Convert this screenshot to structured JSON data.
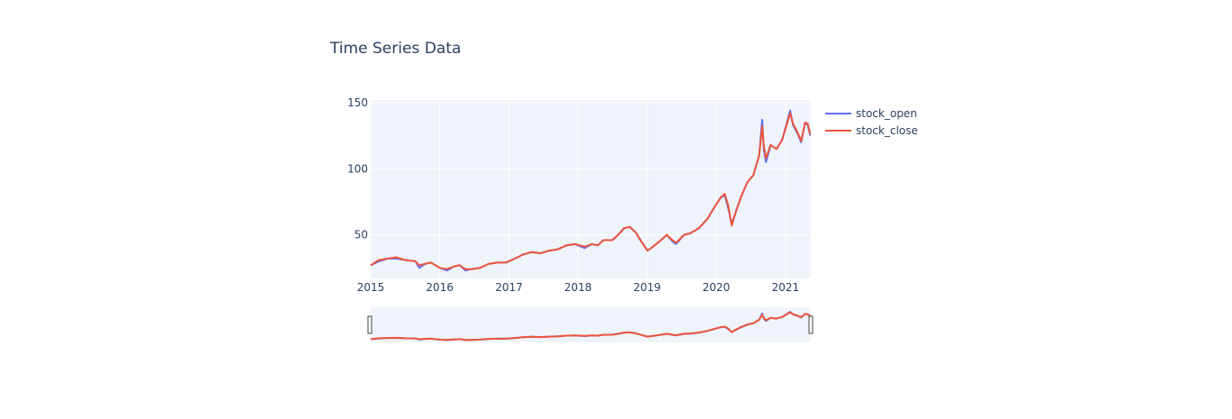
{
  "chart_data": {
    "type": "line",
    "title": "Time Series Data",
    "xlabel": "",
    "ylabel": "",
    "x_ticks": [
      "2015",
      "2016",
      "2017",
      "2018",
      "2019",
      "2020",
      "2021"
    ],
    "y_ticks": [
      50,
      100,
      150
    ],
    "xlim": [
      "2015-01-01",
      "2021-05-15"
    ],
    "ylim": [
      17,
      152
    ],
    "grid": true,
    "legend_position": "top-right",
    "range_slider": true,
    "series": [
      {
        "name": "stock_open",
        "color": "#636efa",
        "x": [
          "2015-01-01",
          "2015-02-15",
          "2015-04-01",
          "2015-05-15",
          "2015-07-01",
          "2015-08-25",
          "2015-09-15",
          "2015-10-15",
          "2015-11-15",
          "2016-01-01",
          "2016-02-10",
          "2016-03-15",
          "2016-04-15",
          "2016-05-15",
          "2016-06-15",
          "2016-08-01",
          "2016-09-15",
          "2016-11-01",
          "2016-12-15",
          "2017-02-01",
          "2017-03-15",
          "2017-05-01",
          "2017-06-15",
          "2017-08-01",
          "2017-09-15",
          "2017-11-01",
          "2017-12-15",
          "2018-02-05",
          "2018-03-15",
          "2018-04-15",
          "2018-05-15",
          "2018-07-01",
          "2018-08-01",
          "2018-09-01",
          "2018-10-01",
          "2018-11-01",
          "2018-12-01",
          "2019-01-03",
          "2019-02-01",
          "2019-03-15",
          "2019-04-15",
          "2019-05-15",
          "2019-06-03",
          "2019-07-15",
          "2019-08-15",
          "2019-10-01",
          "2019-11-15",
          "2020-01-01",
          "2020-01-24",
          "2020-02-15",
          "2020-03-05",
          "2020-03-23",
          "2020-04-15",
          "2020-05-15",
          "2020-06-15",
          "2020-07-15",
          "2020-08-15",
          "2020-08-31",
          "2020-09-08",
          "2020-09-20",
          "2020-10-15",
          "2020-11-15",
          "2020-12-15",
          "2021-01-26",
          "2021-02-10",
          "2021-03-08",
          "2021-03-25",
          "2021-04-15",
          "2021-04-29",
          "2021-05-12"
        ],
        "values": [
          27,
          30,
          32,
          32,
          31,
          30,
          25,
          28,
          29,
          25,
          23,
          26,
          27,
          23,
          24,
          25,
          28,
          29,
          29,
          32,
          35,
          37,
          36,
          38,
          39,
          42,
          43,
          40,
          43,
          42,
          46,
          46,
          50,
          55,
          56,
          52,
          45,
          38,
          41,
          46,
          50,
          45,
          43,
          50,
          51,
          55,
          62,
          73,
          78,
          80,
          70,
          58,
          68,
          80,
          90,
          95,
          110,
          137,
          115,
          105,
          118,
          115,
          122,
          144,
          133,
          126,
          120,
          135,
          133,
          125
        ]
      },
      {
        "name": "stock_close",
        "color": "#ef553b",
        "x": [
          "2015-01-01",
          "2015-02-15",
          "2015-04-01",
          "2015-05-15",
          "2015-07-01",
          "2015-08-25",
          "2015-09-15",
          "2015-10-15",
          "2015-11-15",
          "2016-01-01",
          "2016-02-10",
          "2016-03-15",
          "2016-04-15",
          "2016-05-15",
          "2016-06-15",
          "2016-08-01",
          "2016-09-15",
          "2016-11-01",
          "2016-12-15",
          "2017-02-01",
          "2017-03-15",
          "2017-05-01",
          "2017-06-15",
          "2017-08-01",
          "2017-09-15",
          "2017-11-01",
          "2017-12-15",
          "2018-02-05",
          "2018-03-15",
          "2018-04-15",
          "2018-05-15",
          "2018-07-01",
          "2018-08-01",
          "2018-09-01",
          "2018-10-01",
          "2018-11-01",
          "2018-12-01",
          "2019-01-03",
          "2019-02-01",
          "2019-03-15",
          "2019-04-15",
          "2019-05-15",
          "2019-06-03",
          "2019-07-15",
          "2019-08-15",
          "2019-10-01",
          "2019-11-15",
          "2020-01-01",
          "2020-01-24",
          "2020-02-15",
          "2020-03-05",
          "2020-03-23",
          "2020-04-15",
          "2020-05-15",
          "2020-06-15",
          "2020-07-15",
          "2020-08-15",
          "2020-08-31",
          "2020-09-08",
          "2020-09-20",
          "2020-10-15",
          "2020-11-15",
          "2020-12-15",
          "2021-01-26",
          "2021-02-10",
          "2021-03-08",
          "2021-03-25",
          "2021-04-15",
          "2021-04-29",
          "2021-05-12"
        ],
        "values": [
          27,
          31,
          32,
          33,
          31,
          30,
          27,
          28,
          29,
          25,
          24,
          26,
          27,
          24,
          24,
          25,
          28,
          29,
          29,
          32,
          35,
          37,
          36,
          38,
          39,
          42,
          43,
          41,
          43,
          42,
          46,
          46,
          50,
          55,
          56,
          52,
          45,
          38,
          41,
          46,
          50,
          46,
          44,
          50,
          51,
          55,
          62,
          73,
          78,
          81,
          72,
          57,
          68,
          80,
          90,
          95,
          110,
          132,
          118,
          108,
          118,
          115,
          122,
          142,
          134,
          127,
          121,
          135,
          134,
          126
        ]
      }
    ]
  }
}
